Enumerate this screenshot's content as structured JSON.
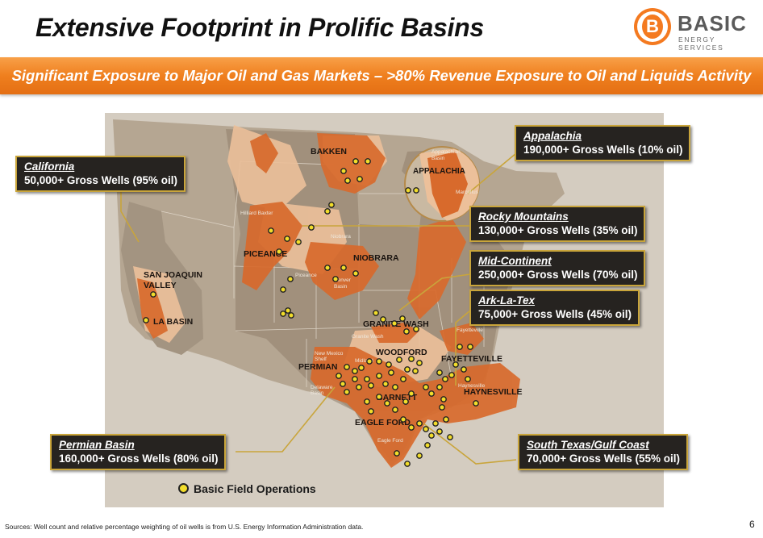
{
  "slide": {
    "title": "Extensive Footprint in Prolific Basins",
    "banner": "Significant Exposure to Major Oil and Gas Markets – >80% Revenue Exposure to Oil and Liquids Activity",
    "page_number": "6",
    "footnote": "Sources: Well count and relative percentage weighting of oil wells  is from U.S. Energy Information Administration data."
  },
  "logo": {
    "letter": "B",
    "word": "BASIC",
    "tagline": "ENERGY SERVICES"
  },
  "map": {
    "labels": {
      "bakken": "BAKKEN",
      "appalachia": "APPALACHIA",
      "piceance": "PICEANCE",
      "niobrara": "NIOBRARA",
      "san_joaquin_1": "SAN JOAQUIN",
      "san_joaquin_2": "VALLEY",
      "la_basin": "LA BASIN",
      "granite_wash": "GRANITE WASH",
      "woodford": "WOODFORD",
      "fayetteville": "FAYETTEVILLE",
      "permian": "PERMIAN",
      "haynesville": "HAYNESVILLE",
      "barnett": "BARNETT",
      "eagle_ford": "EAGLE FORD"
    },
    "faint_labels": {
      "hilliard": "Hilliard Baxter",
      "niobrara": "Niobrara",
      "piceance": "Piceance",
      "denver_1": "Denver",
      "denver_2": "Basin",
      "granite": "Granite Wash",
      "nm_shelf_1": "New Mexico",
      "nm_shelf_2": "Shelf",
      "midland": "Midland",
      "delaware_1": "Delaware",
      "delaware_2": "Basin",
      "fayetteville": "Fayetteville",
      "haynesville": "Haynesville",
      "eagle_ford": "Eagle Ford",
      "app_basin_1": "Appalachian",
      "app_basin_2": "Basin",
      "marcellus": "Marcellus"
    },
    "colors": {
      "basin": "#d86a2c",
      "basin_light": "#ecc09a",
      "land": "#b5a692",
      "dot": "#f2dd2b",
      "leader": "#c9a53b"
    }
  },
  "callouts": [
    {
      "id": "california",
      "name": "California",
      "desc": "50,000+ Gross Wells (95% oil)"
    },
    {
      "id": "appalachia",
      "name": "Appalachia",
      "desc": "190,000+ Gross Wells (10% oil)"
    },
    {
      "id": "rocky",
      "name": "Rocky Mountains",
      "desc": "130,000+ Gross Wells (35% oil)"
    },
    {
      "id": "midcontinent",
      "name": "Mid-Continent",
      "desc": "250,000+ Gross Wells (70% oil)"
    },
    {
      "id": "arklatex",
      "name": "Ark-La-Tex",
      "desc": "75,000+ Gross Wells (45% oil)"
    },
    {
      "id": "permian",
      "name": "Permian Basin",
      "desc": "160,000+ Gross Wells (80% oil)"
    },
    {
      "id": "southtexas",
      "name": "South Texas/Gulf Coast",
      "desc": "70,000+ Gross Wells (55% oil)"
    }
  ],
  "legend": {
    "label": "Basic Field Operations",
    "icon": "yellow-dot-icon"
  }
}
